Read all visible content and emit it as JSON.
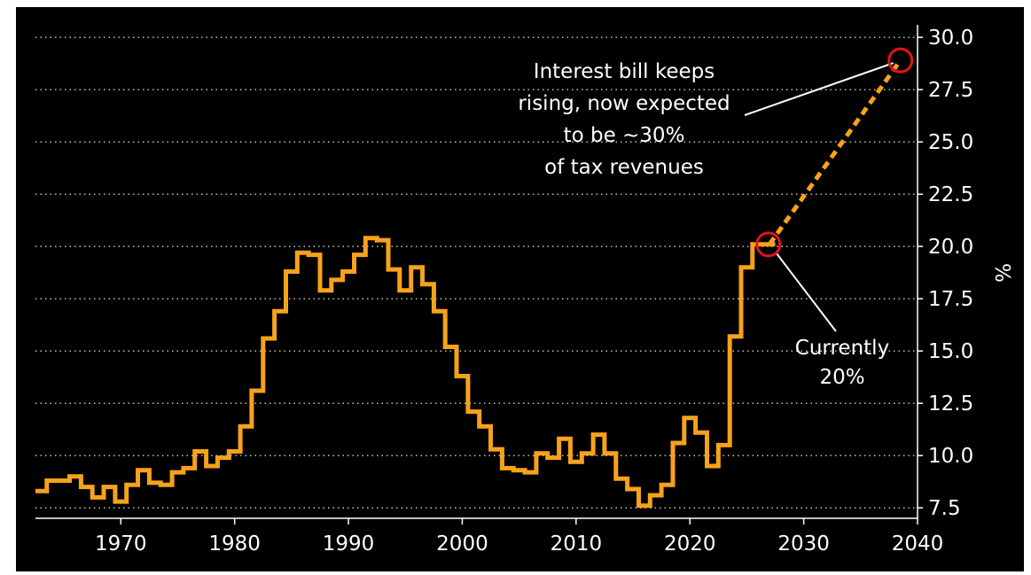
{
  "chart_data": {
    "type": "line",
    "ylabel": "%",
    "xlim": [
      1962.5,
      2040
    ],
    "ylim": [
      7.0,
      30.6
    ],
    "x_ticks": [
      "1970",
      "1980",
      "1990",
      "2000",
      "2010",
      "2020",
      "2030",
      "2040"
    ],
    "y_ticks": [
      "7.5",
      "10.0",
      "12.5",
      "15.0",
      "17.5",
      "20.0",
      "22.5",
      "25.0",
      "27.5",
      "30.0"
    ],
    "grid": true,
    "y_axis_position": "right",
    "line_color": "#f7a21b",
    "background": "#000000",
    "series": [
      {
        "style": "step",
        "x": [
          1963,
          1964,
          1965,
          1966,
          1967,
          1968,
          1969,
          1970,
          1971,
          1972,
          1973,
          1974,
          1975,
          1976,
          1977,
          1978,
          1979,
          1980,
          1981,
          1982,
          1983,
          1984,
          1985,
          1986,
          1987,
          1988,
          1989,
          1990,
          1991,
          1992,
          1993,
          1994,
          1995,
          1996,
          1997,
          1998,
          1999,
          2000,
          2001,
          2002,
          2003,
          2004,
          2005,
          2006,
          2007,
          2008,
          2009,
          2010,
          2011,
          2012,
          2013,
          2014,
          2015,
          2016,
          2017,
          2018,
          2019,
          2020,
          2021,
          2022,
          2023,
          2024,
          2025,
          2026,
          2027
        ],
        "values": [
          8.3,
          8.8,
          8.8,
          9.0,
          8.5,
          8.0,
          8.5,
          7.8,
          8.6,
          9.3,
          8.7,
          8.6,
          9.2,
          9.4,
          10.2,
          9.5,
          9.9,
          10.2,
          11.4,
          13.1,
          15.6,
          16.9,
          18.8,
          19.7,
          19.6,
          17.9,
          18.4,
          18.8,
          19.6,
          20.4,
          20.3,
          18.9,
          17.9,
          19.0,
          18.2,
          16.9,
          15.2,
          13.8,
          12.1,
          11.4,
          10.3,
          9.4,
          9.3,
          9.2,
          10.1,
          9.9,
          10.8,
          9.7,
          10.1,
          11.0,
          10.1,
          8.9,
          8.4,
          7.6,
          8.1,
          8.6,
          10.6,
          11.8,
          11.1,
          9.5,
          10.5,
          15.7,
          19.0,
          20.1,
          20.1
        ]
      },
      {
        "style": "dashed",
        "x": [
          2027,
          2038.5
        ],
        "values": [
          20.1,
          28.9
        ]
      }
    ],
    "annotations": [
      {
        "text_lines": [
          "Interest bill keeps",
          "rising, now expected",
          "to be ~30%",
          "of tax revenues"
        ],
        "x": 2038.5,
        "y": 28.9
      },
      {
        "text_lines": [
          "Currently",
          "20%"
        ],
        "x": 2026.9,
        "y": 20.1
      }
    ]
  }
}
